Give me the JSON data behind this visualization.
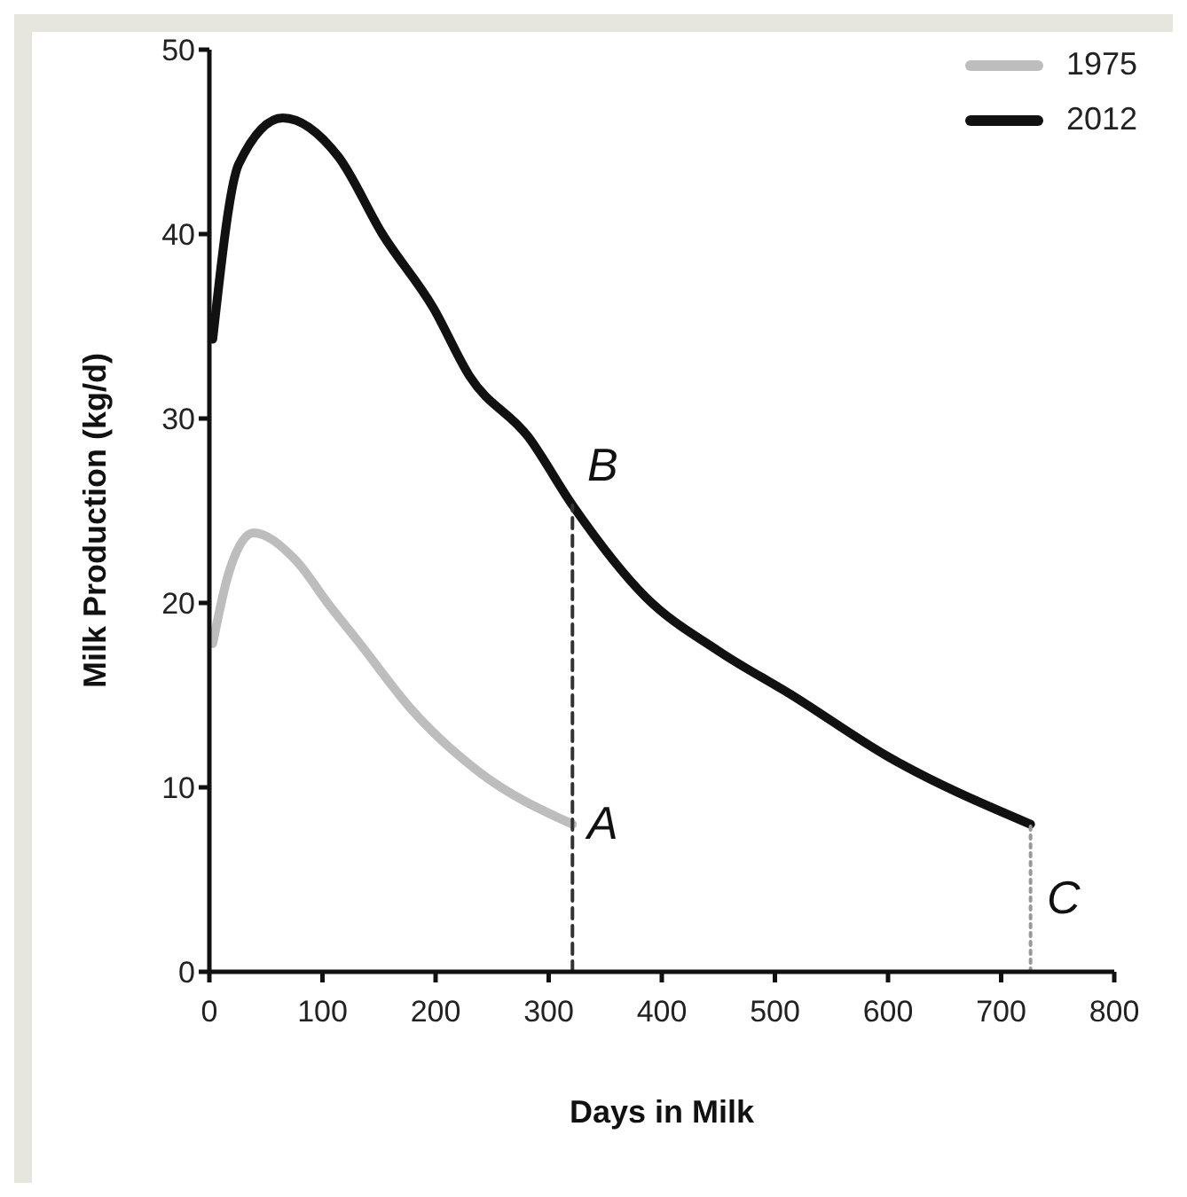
{
  "chart_data": {
    "type": "line",
    "xlabel": "Days in Milk",
    "ylabel": "Milk Production (kg/d)",
    "xlim": [
      0,
      800
    ],
    "xticks": [
      0,
      100,
      200,
      300,
      400,
      500,
      600,
      700,
      800
    ],
    "ylim": [
      0,
      50
    ],
    "yticks": [
      0,
      10,
      20,
      30,
      40,
      50
    ],
    "grid": false,
    "legend": "top right",
    "marker": "none",
    "series": [
      {
        "name": "1975",
        "color": "#bdbdbd",
        "x": [
          3,
          17,
          39,
          75,
          107,
          133,
          179,
          237,
          321
        ],
        "values": [
          17.8,
          21.6,
          23.8,
          22.4,
          19.8,
          17.8,
          14.2,
          10.9,
          8.0
        ]
      },
      {
        "name": "2012",
        "color": "#111111",
        "x": [
          3,
          26,
          65,
          114,
          153,
          198,
          230,
          282,
          321,
          386,
          450,
          515,
          599,
          726
        ],
        "values": [
          34.3,
          43.8,
          46.3,
          44.2,
          40.0,
          36.0,
          32.3,
          29.0,
          25.3,
          20.3,
          17.4,
          15.0,
          11.7,
          8.0
        ]
      },
      {
        "color": "#333333",
        "line_style": "dashed",
        "x": [
          321,
          321
        ],
        "values": [
          0,
          25.3
        ]
      },
      {
        "color": "#999999",
        "line_style": "dotted",
        "x": [
          726,
          726
        ],
        "values": [
          0,
          8.0
        ]
      }
    ],
    "annotations": [
      "A",
      "B",
      "C"
    ]
  }
}
